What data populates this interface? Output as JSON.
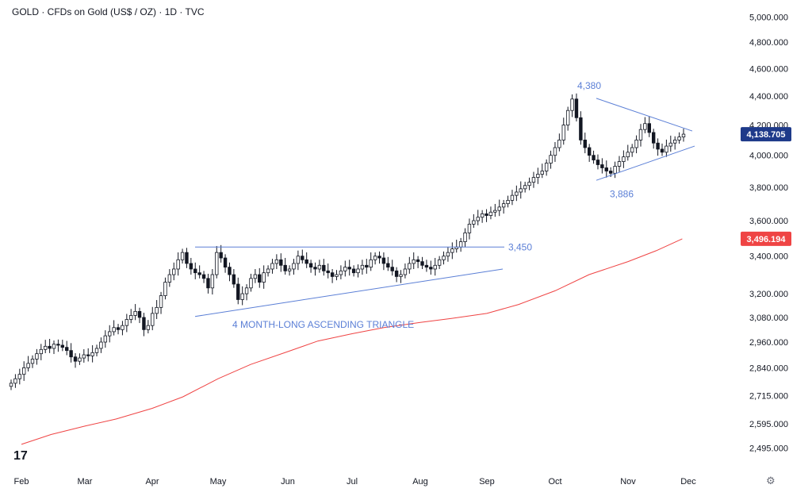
{
  "header": {
    "title": "GOLD · CFDs on Gold (US$ / OZ) · 1D · TVC"
  },
  "chart_data": {
    "type": "candlestick",
    "x_tick_labels": [
      "Feb",
      "Mar",
      "Apr",
      "May",
      "Jun",
      "Jul",
      "Aug",
      "Sep",
      "Oct",
      "Nov",
      "Dec"
    ],
    "y_tick_labels": [
      "5,000.000",
      "4,800.000",
      "4,600.000",
      "4,400.000",
      "4,200.000",
      "4,000.000",
      "3,800.000",
      "3,600.000",
      "3,400.000",
      "3,200.000",
      "3,080.000",
      "2,960.000",
      "2,840.000",
      "2,715.000",
      "2,595.000",
      "2,495.000"
    ],
    "y_tick_values": [
      5000,
      4800,
      4600,
      4400,
      4200,
      4000,
      3800,
      3600,
      3400,
      3200,
      3080,
      2960,
      2840,
      2715,
      2595,
      2495
    ],
    "y_scale": "log",
    "ylim": [
      2440,
      5060
    ],
    "price_badge": {
      "label": "4,138.705",
      "value": 4138.705,
      "color": "#1e3a8a"
    },
    "ma_badge": {
      "label": "3,496.194",
      "value": 3496.194,
      "color": "#ef4444"
    },
    "moving_average": {
      "color": "#ef4444",
      "points": [
        [
          "Feb-1",
          2510
        ],
        [
          "Feb-15",
          2550
        ],
        [
          "Mar-1",
          2585
        ],
        [
          "Mar-15",
          2615
        ],
        [
          "Apr-1",
          2660
        ],
        [
          "Apr-15",
          2710
        ],
        [
          "May-1",
          2790
        ],
        [
          "May-15",
          2855
        ],
        [
          "Jun-1",
          2915
        ],
        [
          "Jun-15",
          2965
        ],
        [
          "Jul-1",
          3000
        ],
        [
          "Jul-15",
          3030
        ],
        [
          "Aug-1",
          3055
        ],
        [
          "Aug-15",
          3075
        ],
        [
          "Sep-1",
          3100
        ],
        [
          "Sep-15",
          3145
        ],
        [
          "Oct-1",
          3215
        ],
        [
          "Oct-15",
          3300
        ],
        [
          "Nov-1",
          3370
        ],
        [
          "Nov-15",
          3430
        ],
        [
          "Nov-28",
          3496.194
        ]
      ]
    },
    "candles_close_path": [
      2770,
      2790,
      2810,
      2840,
      2860,
      2880,
      2905,
      2925,
      2940,
      2930,
      2950,
      2945,
      2935,
      2920,
      2890,
      2870,
      2885,
      2900,
      2895,
      2910,
      2930,
      2960,
      2990,
      3010,
      3030,
      3020,
      3040,
      3070,
      3090,
      3110,
      3080,
      3020,
      3040,
      3100,
      3130,
      3190,
      3260,
      3300,
      3330,
      3380,
      3420,
      3360,
      3330,
      3310,
      3300,
      3280,
      3230,
      3300,
      3420,
      3390,
      3340,
      3300,
      3250,
      3170,
      3200,
      3230,
      3280,
      3300,
      3260,
      3310,
      3330,
      3360,
      3380,
      3350,
      3320,
      3330,
      3360,
      3400,
      3380,
      3360,
      3340,
      3330,
      3350,
      3320,
      3310,
      3290,
      3300,
      3320,
      3340,
      3330,
      3310,
      3330,
      3350,
      3340,
      3380,
      3400,
      3390,
      3360,
      3340,
      3320,
      3290,
      3300,
      3330,
      3360,
      3380,
      3370,
      3350,
      3340,
      3330,
      3350,
      3380,
      3400,
      3420,
      3440,
      3450,
      3480,
      3530,
      3580,
      3600,
      3620,
      3640,
      3630,
      3650,
      3660,
      3680,
      3700,
      3720,
      3750,
      3770,
      3790,
      3810,
      3830,
      3860,
      3880,
      3900,
      3950,
      4000,
      4050,
      4100,
      4200,
      4300,
      4380,
      4250,
      4100,
      4050,
      4000,
      3970,
      3940,
      3920,
      3900,
      3886,
      3930,
      3960,
      3990,
      4020,
      4050,
      4100,
      4170,
      4210,
      4150,
      4080,
      4040,
      4020,
      4060,
      4080,
      4100,
      4120,
      4138.705
    ],
    "annotations": [
      {
        "label": "4,380",
        "value": 4380
      },
      {
        "label": "3,886",
        "value": 3886
      },
      {
        "label": "3,450",
        "value": 3450
      },
      {
        "label": "4 MONTH-LONG ASCENDING TRIANGLE"
      }
    ],
    "colors": {
      "line": "#5b7fd6",
      "text": "#131722",
      "axis_text": "#131722"
    }
  },
  "footer": {
    "logo": "17",
    "settings_icon": "gear-icon"
  }
}
